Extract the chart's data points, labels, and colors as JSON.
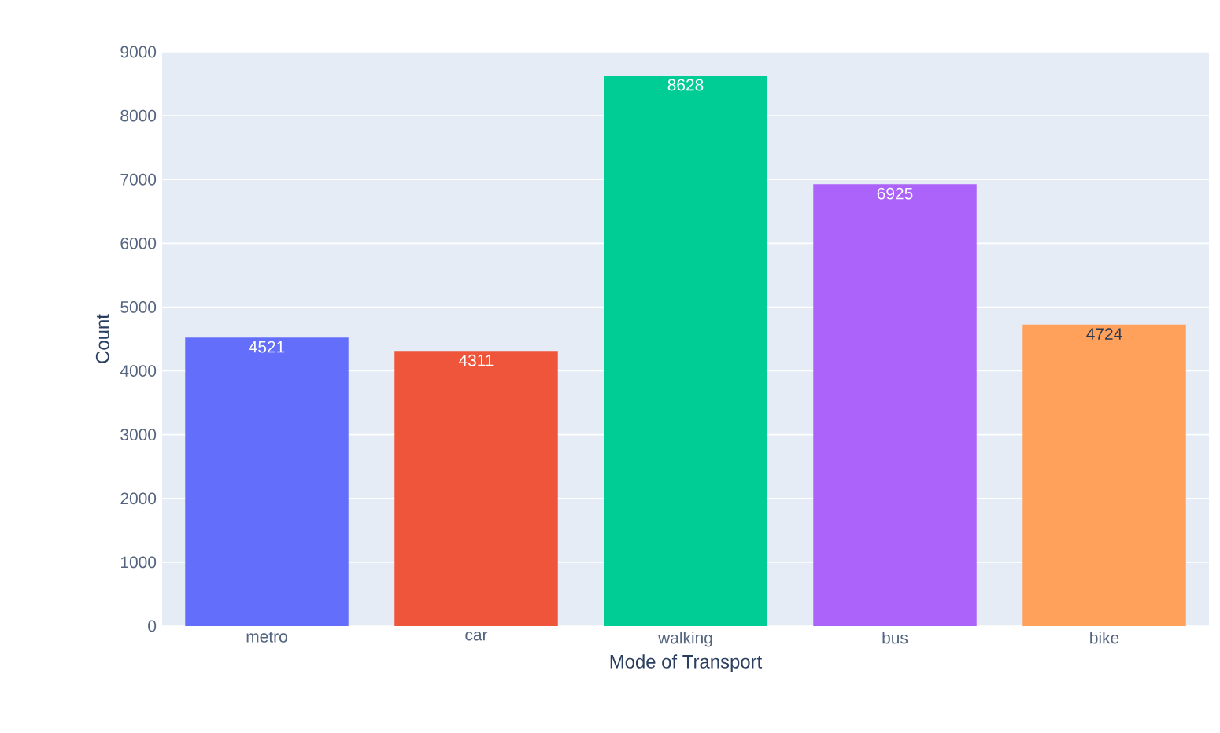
{
  "chart_data": {
    "type": "bar",
    "xlabel": "Mode of Transport",
    "ylabel": "Count",
    "categories": [
      "metro",
      "car",
      "walking",
      "bus",
      "bike"
    ],
    "values": [
      4521,
      4311,
      8628,
      6925,
      4724
    ],
    "colors": [
      "#636efa",
      "#ef553b",
      "#00cc96",
      "#ab63fa",
      "#ffa15a"
    ],
    "ylim": [
      0,
      9000
    ],
    "yticks": [
      0,
      1000,
      2000,
      3000,
      4000,
      5000,
      6000,
      7000,
      8000,
      9000
    ],
    "grid": "y",
    "data_labels": true
  }
}
